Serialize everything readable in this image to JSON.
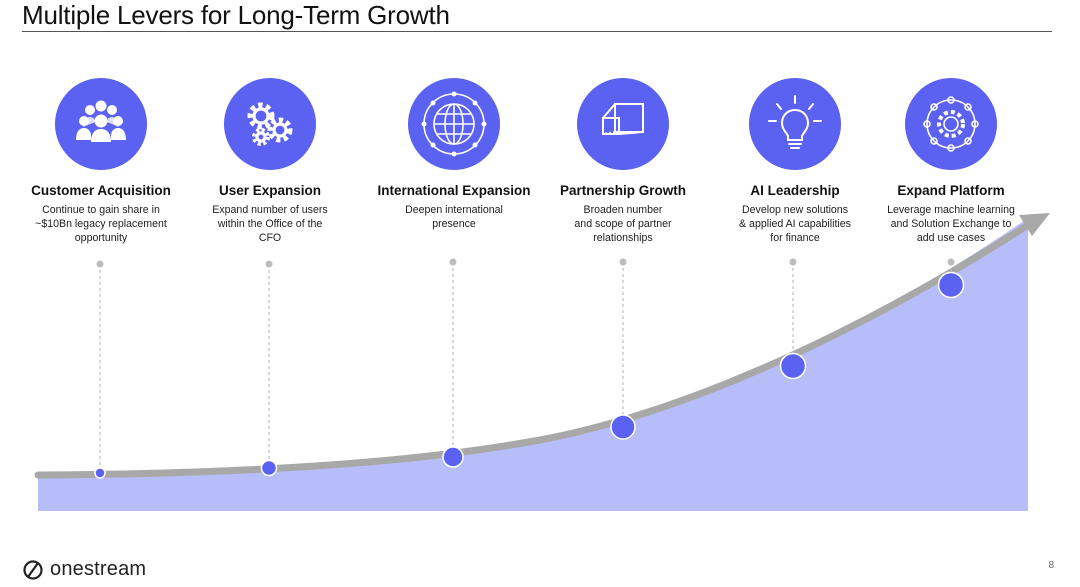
{
  "slide": {
    "title": "Multiple Levers for Long-Term Growth",
    "page_number": "8"
  },
  "logo": {
    "text": "onestream"
  },
  "colors": {
    "accent": "#5b61f0",
    "area_fill": "#b7bdf9",
    "curve": "#a8a8a8",
    "connector": "#bdbdbd"
  },
  "levers": [
    {
      "icon": "people-group-icon",
      "heading": "Customer Acquisition",
      "desc": [
        "Continue to gain share in",
        "~$10Bn legacy replacement",
        "opportunity"
      ]
    },
    {
      "icon": "gears-icon",
      "heading": "User Expansion",
      "desc": [
        "Expand number of users",
        "within the Office of the",
        "CFO"
      ]
    },
    {
      "icon": "globe-network-icon",
      "heading": "International Expansion",
      "desc": [
        "Deepen international",
        "presence"
      ]
    },
    {
      "icon": "cube-outline-icon",
      "heading": "Partnership Growth",
      "desc": [
        "Broaden number",
        "and scope of partner",
        "relationships"
      ]
    },
    {
      "icon": "lightbulb-icon",
      "heading": "AI Leadership",
      "desc": [
        "Develop new solutions",
        "& applied AI capabilities",
        "for finance"
      ]
    },
    {
      "icon": "platform-gear-network-icon",
      "heading": "Expand Platform",
      "desc": [
        "Leverage machine learning",
        "and Solution Exchange to",
        "add use cases"
      ]
    }
  ]
}
